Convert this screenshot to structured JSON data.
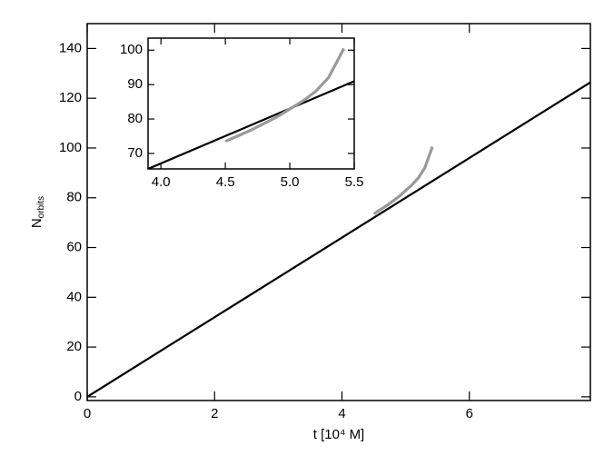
{
  "chart_data": [
    {
      "type": "line",
      "xlabel": "t [10⁴ M]",
      "ylabel": "N",
      "ylabel_sub": "orbits",
      "xlim": [
        0,
        7.9
      ],
      "ylim": [
        -1.5,
        150
      ],
      "xticks": [
        0,
        2,
        4,
        6
      ],
      "yticks": [
        0,
        20,
        40,
        60,
        80,
        100,
        120,
        140
      ],
      "series": [
        {
          "color": "#000000",
          "x": [
            0,
            7.9
          ],
          "values": [
            0,
            126.4
          ]
        },
        {
          "color": "#999999",
          "x": [
            4.5,
            4.7,
            4.9,
            5.1,
            5.2,
            5.3,
            5.42
          ],
          "values": [
            73.5,
            76.8,
            80.6,
            85.2,
            88,
            92,
            100.5
          ]
        }
      ]
    },
    {
      "type": "line",
      "xlim": [
        3.9,
        5.5
      ],
      "ylim": [
        65.5,
        103.5
      ],
      "xticks": [
        {
          "value": 4,
          "label": "4.0"
        },
        4.5,
        {
          "value": 5,
          "label": "5.0"
        },
        5.5
      ],
      "yticks": [
        70,
        80,
        90,
        100
      ],
      "series": [
        {
          "color": "#000000",
          "x": [
            3.9,
            5.5
          ],
          "values": [
            65.5,
            91
          ]
        },
        {
          "color": "#999999",
          "x": [
            4.5,
            4.7,
            4.9,
            5.1,
            5.2,
            5.3,
            5.42
          ],
          "values": [
            73.5,
            76.8,
            80.6,
            85.2,
            88,
            92,
            100.5
          ]
        }
      ]
    }
  ]
}
